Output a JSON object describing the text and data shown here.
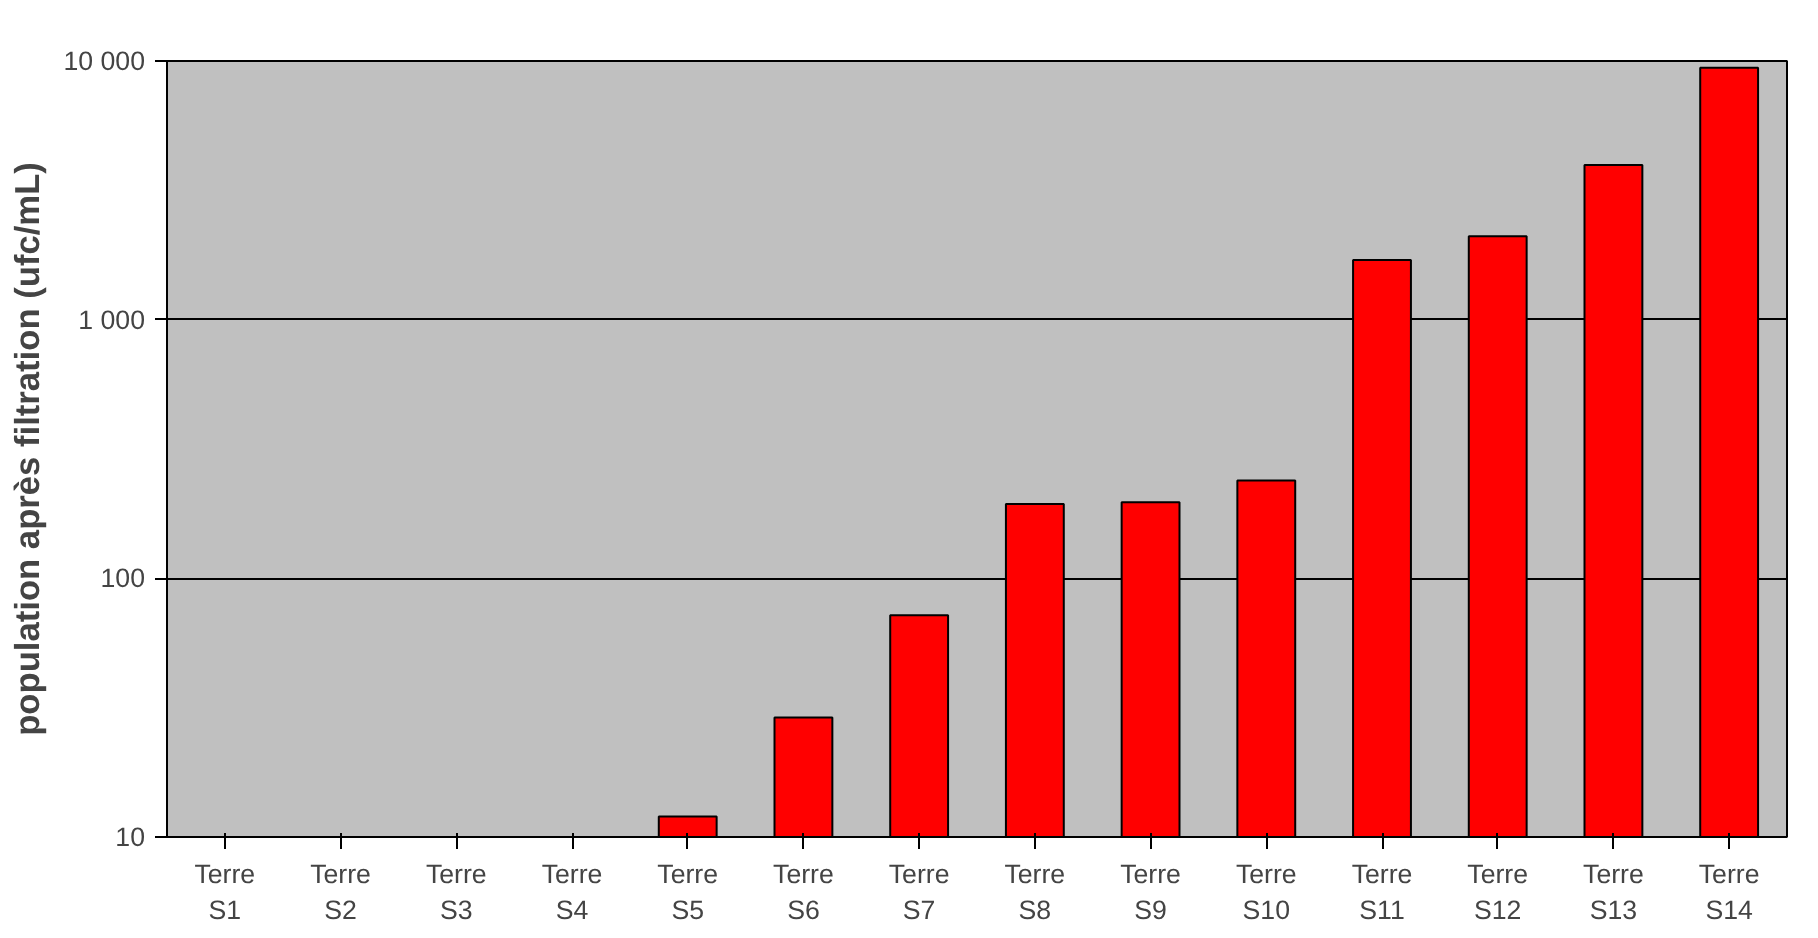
{
  "chart_data": {
    "type": "bar",
    "ylabel": "population après filtration (ufc/mL)",
    "categories": [
      "Terre S1",
      "Terre S2",
      "Terre S3",
      "Terre S4",
      "Terre S5",
      "Terre S6",
      "Terre S7",
      "Terre S8",
      "Terre S9",
      "Terre S10",
      "Terre S11",
      "Terre S12",
      "Terre S13",
      "Terre S14"
    ],
    "values": [
      null,
      null,
      null,
      null,
      12,
      29,
      72,
      194,
      197,
      239,
      1700,
      2100,
      3960,
      9420
    ],
    "color": "#ff0000",
    "log": true,
    "ylim": [
      10,
      10000
    ],
    "yticks": [
      10,
      100,
      {
        "value": 1000,
        "label": "1 000"
      },
      {
        "value": 10000,
        "label": "10 000"
      }
    ],
    "grid": "y"
  }
}
